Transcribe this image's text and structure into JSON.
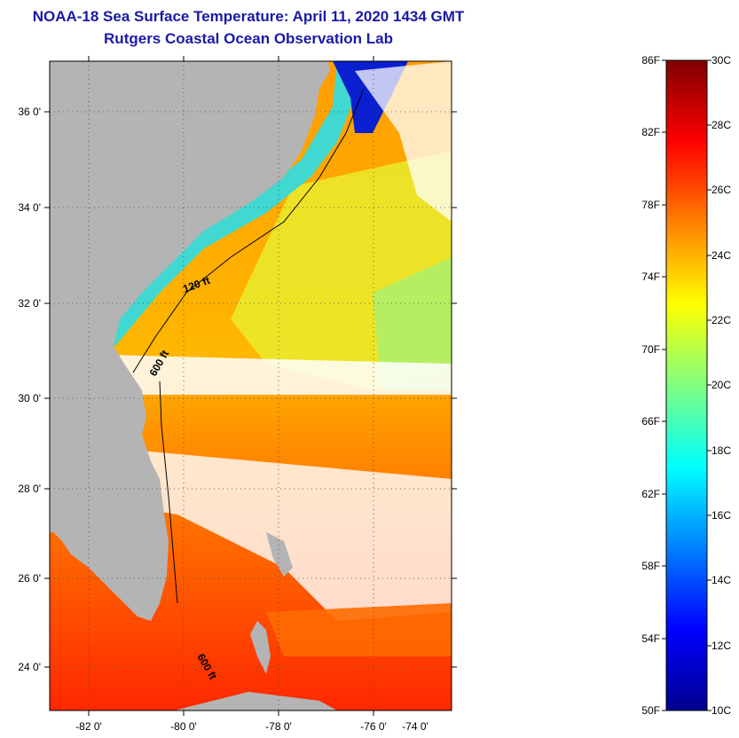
{
  "title": {
    "line1": "NOAA-18 Sea Surface Temperature:  April 11, 2020 1434 GMT",
    "line2": "Rutgers Coastal Ocean Observation Lab"
  },
  "map": {
    "lat_labels": [
      "36 0'",
      "34 0'",
      "32 0'",
      "30 0'",
      "28 0'",
      "26 0'",
      "24 0'"
    ],
    "lon_labels": [
      "-82 0'",
      "-80 0'",
      "-78 0'",
      "-76 0'",
      "-74 0'"
    ],
    "contour_labels": [
      "120 ft",
      "600 ft",
      "600 ft"
    ],
    "land_color": "#b4b4b4",
    "cloud_color": "#ffffff"
  },
  "colorbar": {
    "fahrenheit": [
      "86F",
      "82F",
      "78F",
      "74F",
      "70F",
      "66F",
      "62F",
      "58F",
      "54F",
      "50F"
    ],
    "celsius": [
      "30C",
      "28C",
      "26C",
      "24C",
      "22C",
      "20C",
      "18C",
      "16C",
      "14C",
      "12C",
      "10C"
    ],
    "colors": [
      "#00008f",
      "#0000ff",
      "#0080ff",
      "#00ffff",
      "#80ff80",
      "#ffff00",
      "#ff8000",
      "#ff0000",
      "#800000"
    ]
  }
}
